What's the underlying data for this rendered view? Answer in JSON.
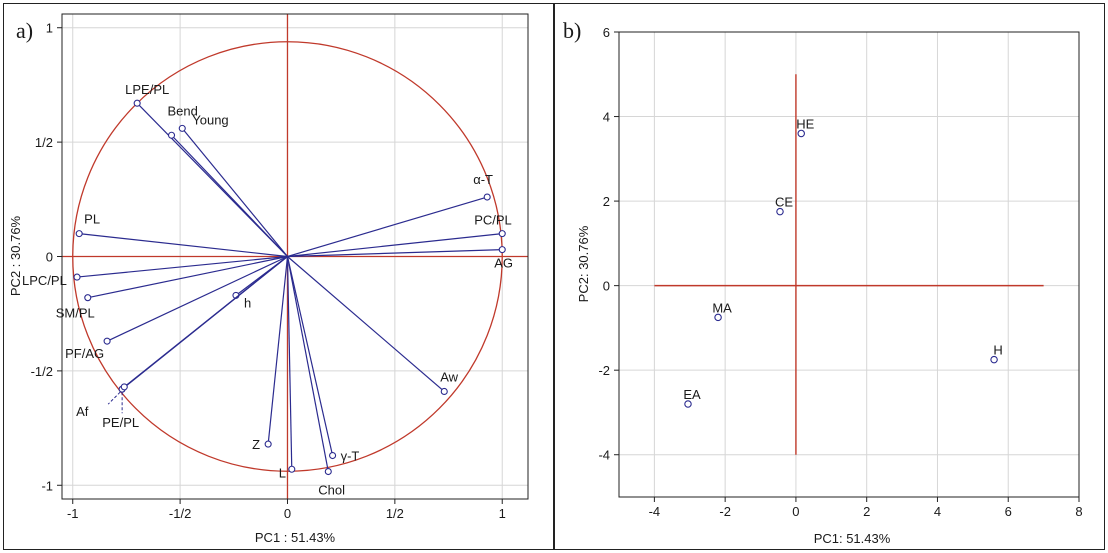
{
  "chart_data": [
    {
      "type": "scatter",
      "panel_label": "a)",
      "xlabel": "PC1 : 51.43%",
      "ylabel": "PC2 : 30.76%",
      "xlim": [
        -1.05,
        1.12
      ],
      "ylim": [
        -1.06,
        1.06
      ],
      "x_ticks": [
        {
          "value": -1,
          "label": "-1"
        },
        {
          "value": -0.5,
          "label": "-1/2"
        },
        {
          "value": 0,
          "label": "0"
        },
        {
          "value": 0.5,
          "label": "1/2"
        },
        {
          "value": 1,
          "label": "1"
        }
      ],
      "y_ticks": [
        {
          "value": 1,
          "label": "1"
        },
        {
          "value": 0.5,
          "label": "1/2"
        },
        {
          "value": 0,
          "label": "0"
        },
        {
          "value": -0.5,
          "label": "-1/2"
        },
        {
          "value": -1,
          "label": "-1"
        }
      ],
      "grid": true,
      "unit_circle": true,
      "reference_lines": {
        "x": 0,
        "y": 0
      },
      "circle_color": "#c0392b",
      "vector_color": "#2b2b8f",
      "points": [
        {
          "label": "LPE/PL",
          "x": -0.7,
          "y": 0.67
        },
        {
          "label": "Bend",
          "x": -0.54,
          "y": 0.53
        },
        {
          "label": "Young",
          "x": -0.49,
          "y": 0.56
        },
        {
          "label": "α-T",
          "x": 0.93,
          "y": 0.26
        },
        {
          "label": "PL",
          "x": -0.97,
          "y": 0.1
        },
        {
          "label": "PC/PL",
          "x": 1.0,
          "y": 0.1
        },
        {
          "label": "AG",
          "x": 1.0,
          "y": 0.03
        },
        {
          "label": "LPC/PL",
          "x": -0.98,
          "y": -0.09
        },
        {
          "label": "h",
          "x": -0.24,
          "y": -0.17
        },
        {
          "label": "SM/PL",
          "x": -0.93,
          "y": -0.18
        },
        {
          "label": "PF/AG",
          "x": -0.84,
          "y": -0.37
        },
        {
          "label": "Aw",
          "x": 0.73,
          "y": -0.59
        },
        {
          "label": "Af",
          "x": -0.77,
          "y": -0.58
        },
        {
          "label": "PE/PL",
          "x": -0.76,
          "y": -0.57
        },
        {
          "label": "Z",
          "x": -0.09,
          "y": -0.82
        },
        {
          "label": "γ-T",
          "x": 0.21,
          "y": -0.87
        },
        {
          "label": "L",
          "x": 0.02,
          "y": -0.93
        },
        {
          "label": "Chol",
          "x": 0.19,
          "y": -0.94
        }
      ]
    },
    {
      "type": "scatter",
      "panel_label": "b)",
      "xlabel": "PC1: 51.43%",
      "ylabel": "PC2: 30.76%",
      "xlim": [
        -5,
        8
      ],
      "ylim": [
        -5,
        6
      ],
      "x_ticks": [
        -4,
        -2,
        0,
        2,
        4,
        6,
        8
      ],
      "y_ticks": [
        -4,
        -2,
        0,
        2,
        4,
        6
      ],
      "grid": true,
      "reference_lines": {
        "x_segment": [
          -4,
          7
        ],
        "y_segment": [
          -4,
          5
        ]
      },
      "line_color": "#c0392b",
      "point_color": "#2b2b8f",
      "points": [
        {
          "label": "HE",
          "x": 0.15,
          "y": 3.6
        },
        {
          "label": "CE",
          "x": -0.45,
          "y": 1.75
        },
        {
          "label": "MA",
          "x": -2.2,
          "y": -0.75
        },
        {
          "label": "H",
          "x": 5.6,
          "y": -1.75
        },
        {
          "label": "EA",
          "x": -3.05,
          "y": -2.8
        }
      ]
    }
  ]
}
